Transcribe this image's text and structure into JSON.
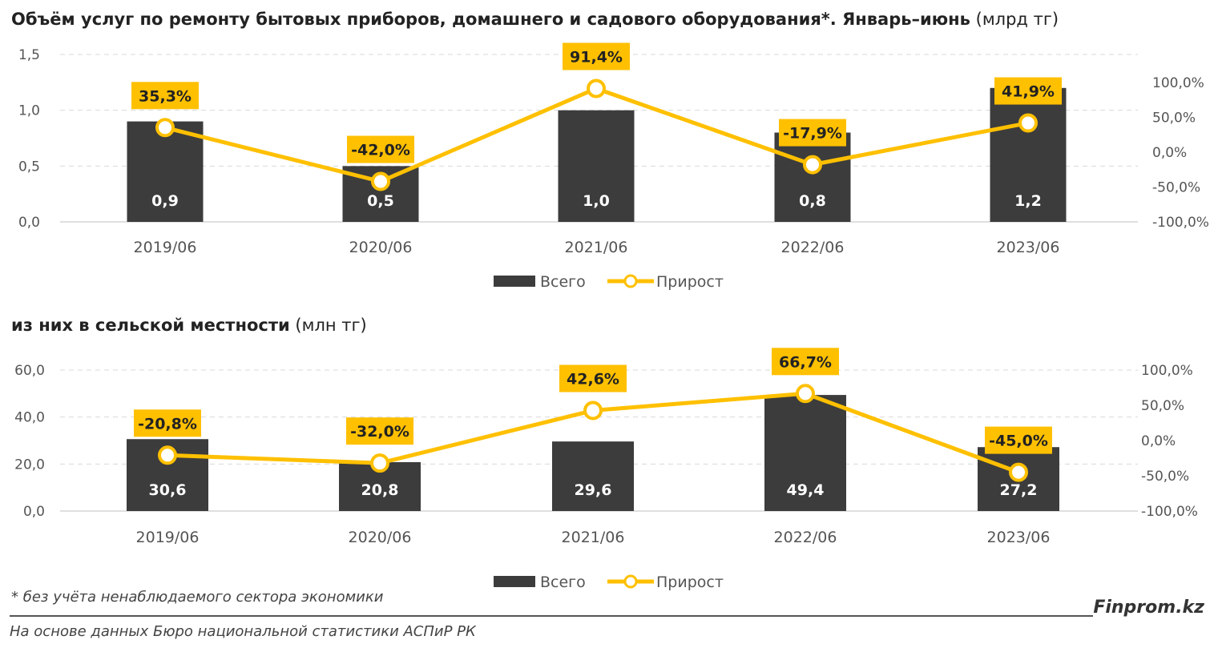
{
  "chart_data": [
    {
      "type": "bar+line",
      "title_bold": "Объём услуг по ремонту бытовых приборов, домашнего и садового оборудования*. Январь–июнь",
      "title_unit": "(млрд тг)",
      "categories": [
        "2019/06",
        "2020/06",
        "2021/06",
        "2022/06",
        "2023/06"
      ],
      "series": [
        {
          "name": "Всего",
          "type": "bar",
          "axis": "left",
          "values": [
            0.9,
            0.5,
            1.0,
            0.8,
            1.2
          ],
          "labels": [
            "0,9",
            "0,5",
            "1,0",
            "0,8",
            "1,2"
          ],
          "color": "#3c3c3c"
        },
        {
          "name": "Прирост",
          "type": "line",
          "axis": "right",
          "values": [
            35.3,
            -42.0,
            91.4,
            -17.9,
            41.9
          ],
          "labels": [
            "35,3%",
            "-42,0%",
            "91,4%",
            "-17,9%",
            "41,9%"
          ],
          "color": "#FFC000"
        }
      ],
      "ylim": [
        0,
        1.5
      ],
      "yticks": [
        "0,0",
        "0,5",
        "1,0",
        "1,5"
      ],
      "y2ticks": [
        "-100,0%",
        "-50,0%",
        "0,0%",
        "50,0%",
        "100,0%"
      ],
      "y2tick_values": [
        -100,
        -50,
        0,
        50,
        100
      ],
      "grid": true,
      "legend": "bottom"
    },
    {
      "type": "bar+line",
      "title_bold": "из них в сельской местности",
      "title_unit": "(млн тг)",
      "categories": [
        "2019/06",
        "2020/06",
        "2021/06",
        "2022/06",
        "2023/06"
      ],
      "series": [
        {
          "name": "Всего",
          "type": "bar",
          "axis": "left",
          "values": [
            30.6,
            20.8,
            29.6,
            49.4,
            27.2
          ],
          "labels": [
            "30,6",
            "20,8",
            "29,6",
            "49,4",
            "27,2"
          ],
          "color": "#3c3c3c"
        },
        {
          "name": "Прирост",
          "type": "line",
          "axis": "right",
          "values": [
            -20.8,
            -32.0,
            42.6,
            66.7,
            -45.0
          ],
          "labels": [
            "-20,8%",
            "-32,0%",
            "42,6%",
            "66,7%",
            "-45,0%"
          ],
          "color": "#FFC000"
        }
      ],
      "ylim": [
        0,
        60
      ],
      "yticks": [
        "0,0",
        "20,0",
        "40,0",
        "60,0"
      ],
      "y2ticks": [
        "-100,0%",
        "-50,0%",
        "0,0%",
        "50,0%",
        "100,0%"
      ],
      "y2tick_values": [
        -100,
        -50,
        0,
        50,
        100
      ],
      "grid": true,
      "legend": "bottom"
    }
  ],
  "footnote": "* без учёта ненаблюдаемого сектора экономики",
  "source": "На основе данных Бюро национальной статистики АСПиР РК",
  "logo": "Finprom.kz"
}
